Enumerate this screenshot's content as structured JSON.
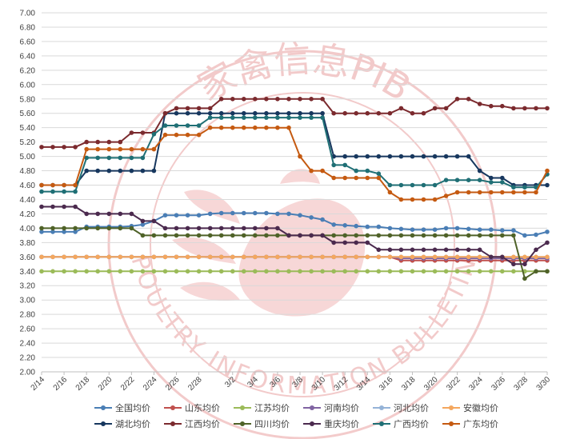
{
  "watermark": {
    "top_text": "家禽信息PIB",
    "bottom_text": "POULTRY INFORMATION BULLETIN",
    "color": "#e9a0a0"
  },
  "chart_data": {
    "type": "line",
    "title": "",
    "xlabel": "",
    "ylabel": "",
    "ylim": [
      2.0,
      7.0
    ],
    "y_ticks": [
      "2.00",
      "2.20",
      "2.40",
      "2.60",
      "2.80",
      "3.00",
      "3.20",
      "3.40",
      "3.60",
      "3.80",
      "4.00",
      "4.20",
      "4.40",
      "4.60",
      "4.80",
      "5.00",
      "5.20",
      "5.40",
      "5.60",
      "5.80",
      "6.00",
      "6.20",
      "6.40",
      "6.60",
      "6.80",
      "7.00"
    ],
    "x_tick_labels": [
      "2/14",
      "2/16",
      "2/18",
      "2/20",
      "2/22",
      "2/24",
      "2/26",
      "2/28",
      "3/2",
      "3/4",
      "3/6",
      "3/8",
      "3/10",
      "3/12",
      "3/14",
      "3/16",
      "3/18",
      "3/20",
      "3/22",
      "3/24",
      "3/26",
      "3/28",
      "3/30"
    ],
    "x_dates": [
      "2/14",
      "2/15",
      "2/16",
      "2/17",
      "2/18",
      "2/19",
      "2/20",
      "2/21",
      "2/22",
      "2/23",
      "2/24",
      "2/25",
      "2/26",
      "2/27",
      "2/28",
      "2/29",
      "3/1",
      "3/2",
      "3/3",
      "3/4",
      "3/5",
      "3/6",
      "3/7",
      "3/8",
      "3/9",
      "3/10",
      "3/11",
      "3/12",
      "3/13",
      "3/14",
      "3/15",
      "3/16",
      "3/17",
      "3/18",
      "3/19",
      "3/20",
      "3/21",
      "3/22",
      "3/23",
      "3/24",
      "3/25",
      "3/26",
      "3/27",
      "3/28",
      "3/29",
      "3/30"
    ],
    "grid": "horizontal",
    "legend_position": "bottom",
    "series": [
      {
        "name": "全国均价",
        "color": "#4a7eb5",
        "values": [
          3.95,
          3.95,
          3.95,
          3.95,
          4.02,
          4.02,
          4.02,
          4.02,
          4.03,
          4.05,
          4.1,
          4.18,
          4.18,
          4.18,
          4.18,
          4.2,
          4.21,
          4.21,
          4.21,
          4.21,
          4.21,
          4.2,
          4.2,
          4.18,
          4.15,
          4.12,
          4.05,
          4.04,
          4.03,
          4.02,
          4.02,
          4.0,
          3.99,
          3.98,
          3.98,
          3.98,
          4.0,
          4.0,
          3.99,
          3.98,
          3.98,
          3.97,
          3.97,
          3.9,
          3.91,
          3.95
        ]
      },
      {
        "name": "山东均价",
        "color": "#c0504d",
        "values": [
          3.6,
          3.6,
          3.6,
          3.6,
          3.6,
          3.6,
          3.6,
          3.6,
          3.6,
          3.6,
          3.6,
          3.6,
          3.6,
          3.6,
          3.6,
          3.6,
          3.6,
          3.6,
          3.6,
          3.6,
          3.6,
          3.6,
          3.6,
          3.6,
          3.6,
          3.6,
          3.6,
          3.6,
          3.6,
          3.6,
          3.6,
          3.6,
          3.55,
          3.55,
          3.55,
          3.55,
          3.55,
          3.55,
          3.55,
          3.55,
          3.55,
          3.55,
          3.55,
          3.55,
          3.55,
          3.55
        ]
      },
      {
        "name": "江苏均价",
        "color": "#9bbb59",
        "values": [
          3.4,
          3.4,
          3.4,
          3.4,
          3.4,
          3.4,
          3.4,
          3.4,
          3.4,
          3.4,
          3.4,
          3.4,
          3.4,
          3.4,
          3.4,
          3.4,
          3.4,
          3.4,
          3.4,
          3.4,
          3.4,
          3.4,
          3.4,
          3.4,
          3.4,
          3.4,
          3.4,
          3.4,
          3.4,
          3.4,
          3.4,
          3.4,
          3.4,
          3.4,
          3.4,
          3.4,
          3.4,
          3.4,
          3.4,
          3.4,
          3.4,
          3.4,
          3.4,
          3.4,
          3.4,
          3.4
        ]
      },
      {
        "name": "河南均价",
        "color": "#8064a2",
        "values": [
          3.6,
          3.6,
          3.6,
          3.6,
          3.6,
          3.6,
          3.6,
          3.6,
          3.6,
          3.6,
          3.6,
          3.6,
          3.6,
          3.6,
          3.6,
          3.6,
          3.6,
          3.6,
          3.6,
          3.6,
          3.6,
          3.6,
          3.6,
          3.6,
          3.6,
          3.6,
          3.6,
          3.6,
          3.6,
          3.6,
          3.6,
          3.6,
          3.58,
          3.58,
          3.58,
          3.58,
          3.58,
          3.58,
          3.58,
          3.58,
          3.58,
          3.58,
          3.58,
          3.58,
          3.58,
          3.58
        ]
      },
      {
        "name": "河北均价",
        "color": "#95b3d7",
        "values": [
          3.6,
          3.6,
          3.6,
          3.6,
          3.6,
          3.6,
          3.6,
          3.6,
          3.6,
          3.6,
          3.6,
          3.6,
          3.6,
          3.6,
          3.6,
          3.6,
          3.6,
          3.6,
          3.6,
          3.6,
          3.6,
          3.6,
          3.6,
          3.6,
          3.6,
          3.6,
          3.6,
          3.6,
          3.6,
          3.6,
          3.6,
          3.6,
          3.6,
          3.6,
          3.6,
          3.6,
          3.6,
          3.6,
          3.6,
          3.6,
          3.6,
          3.6,
          3.6,
          3.6,
          3.6,
          3.6
        ]
      },
      {
        "name": "安徽均价",
        "color": "#f4a75e",
        "values": [
          3.6,
          3.6,
          3.6,
          3.6,
          3.6,
          3.6,
          3.6,
          3.6,
          3.6,
          3.6,
          3.6,
          3.6,
          3.6,
          3.6,
          3.6,
          3.6,
          3.6,
          3.6,
          3.6,
          3.6,
          3.6,
          3.6,
          3.6,
          3.6,
          3.6,
          3.6,
          3.6,
          3.6,
          3.6,
          3.6,
          3.6,
          3.6,
          3.6,
          3.6,
          3.6,
          3.6,
          3.6,
          3.6,
          3.6,
          3.6,
          3.6,
          3.6,
          3.6,
          3.6,
          3.6,
          3.6
        ]
      },
      {
        "name": "湖北均价",
        "color": "#17375e",
        "values": [
          4.6,
          4.6,
          4.6,
          4.6,
          4.8,
          4.8,
          4.8,
          4.8,
          4.8,
          4.8,
          4.8,
          5.6,
          5.6,
          5.6,
          5.6,
          5.6,
          5.6,
          5.6,
          5.6,
          5.6,
          5.6,
          5.6,
          5.6,
          5.6,
          5.6,
          5.6,
          5.0,
          5.0,
          5.0,
          5.0,
          5.0,
          5.0,
          5.0,
          5.0,
          5.0,
          5.0,
          5.0,
          5.0,
          5.0,
          4.8,
          4.7,
          4.7,
          4.6,
          4.6,
          4.6,
          4.6
        ]
      },
      {
        "name": "江西均价",
        "color": "#7b2a2e",
        "values": [
          5.13,
          5.13,
          5.13,
          5.13,
          5.2,
          5.2,
          5.2,
          5.2,
          5.33,
          5.33,
          5.33,
          5.6,
          5.67,
          5.67,
          5.67,
          5.67,
          5.8,
          5.8,
          5.8,
          5.8,
          5.8,
          5.8,
          5.8,
          5.8,
          5.8,
          5.8,
          5.6,
          5.6,
          5.6,
          5.6,
          5.6,
          5.6,
          5.67,
          5.6,
          5.6,
          5.67,
          5.67,
          5.8,
          5.8,
          5.73,
          5.7,
          5.7,
          5.67,
          5.67,
          5.67,
          5.67
        ]
      },
      {
        "name": "四川均价",
        "color": "#4f6228",
        "values": [
          4.0,
          4.0,
          4.0,
          4.0,
          4.0,
          4.0,
          4.0,
          4.0,
          4.0,
          3.9,
          3.9,
          3.9,
          3.9,
          3.9,
          3.9,
          3.9,
          3.9,
          3.9,
          3.9,
          3.9,
          3.9,
          3.9,
          3.9,
          3.9,
          3.9,
          3.9,
          3.9,
          3.9,
          3.9,
          3.9,
          3.9,
          3.9,
          3.9,
          3.9,
          3.9,
          3.9,
          3.9,
          3.9,
          3.9,
          3.9,
          3.9,
          3.9,
          3.9,
          3.3,
          3.4,
          3.4
        ]
      },
      {
        "name": "重庆均价",
        "color": "#4b2a4e",
        "values": [
          4.3,
          4.3,
          4.3,
          4.3,
          4.2,
          4.2,
          4.2,
          4.2,
          4.2,
          4.1,
          4.1,
          4.0,
          4.0,
          4.0,
          4.0,
          4.0,
          4.0,
          4.0,
          4.0,
          4.0,
          4.0,
          4.0,
          3.9,
          3.9,
          3.9,
          3.9,
          3.8,
          3.8,
          3.8,
          3.8,
          3.7,
          3.7,
          3.7,
          3.7,
          3.7,
          3.7,
          3.7,
          3.7,
          3.7,
          3.7,
          3.6,
          3.6,
          3.5,
          3.5,
          3.7,
          3.8
        ]
      },
      {
        "name": "广西均价",
        "color": "#1f6f75",
        "values": [
          4.51,
          4.51,
          4.51,
          4.51,
          4.98,
          4.98,
          4.98,
          4.98,
          4.98,
          4.98,
          5.31,
          5.43,
          5.43,
          5.43,
          5.43,
          5.54,
          5.54,
          5.54,
          5.54,
          5.54,
          5.54,
          5.54,
          5.54,
          5.54,
          5.54,
          5.54,
          4.88,
          4.88,
          4.8,
          4.8,
          4.76,
          4.6,
          4.6,
          4.6,
          4.6,
          4.6,
          4.67,
          4.67,
          4.67,
          4.67,
          4.64,
          4.64,
          4.57,
          4.57,
          4.57,
          4.75
        ]
      },
      {
        "name": "广东均价",
        "color": "#c55a11",
        "values": [
          4.6,
          4.6,
          4.6,
          4.6,
          5.1,
          5.1,
          5.1,
          5.1,
          5.1,
          5.1,
          5.1,
          5.3,
          5.3,
          5.3,
          5.3,
          5.4,
          5.4,
          5.4,
          5.4,
          5.4,
          5.4,
          5.4,
          5.4,
          5.0,
          4.8,
          4.8,
          4.7,
          4.7,
          4.7,
          4.7,
          4.7,
          4.5,
          4.4,
          4.4,
          4.4,
          4.4,
          4.45,
          4.5,
          4.5,
          4.5,
          4.5,
          4.5,
          4.5,
          4.5,
          4.5,
          4.8
        ]
      }
    ]
  }
}
